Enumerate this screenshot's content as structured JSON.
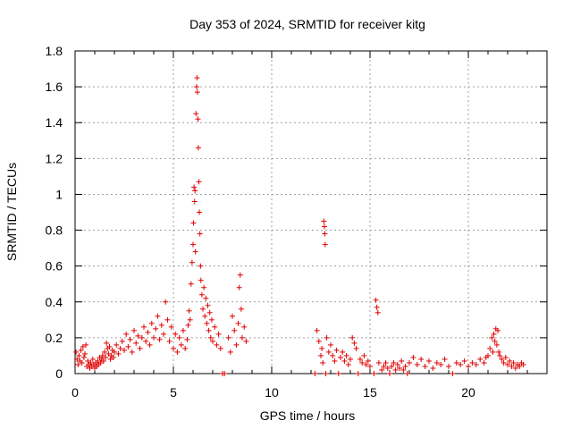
{
  "chart_data": {
    "type": "scatter",
    "title": "Day 353 of 2024, SRMTID for receiver kitg",
    "xlabel": "GPS time / hours",
    "ylabel": "SRMTID / TECUs",
    "xlim": [
      0,
      24
    ],
    "ylim": [
      0,
      1.8
    ],
    "xticks": [
      0,
      5,
      10,
      15,
      20
    ],
    "yticks": [
      0,
      0.2,
      0.4,
      0.6,
      0.8,
      1,
      1.2,
      1.4,
      1.6,
      1.8
    ],
    "xtick_labels": [
      "0",
      "5",
      "10",
      "15",
      "20"
    ],
    "ytick_labels": [
      "0",
      "0.2",
      "0.4",
      "0.6",
      "0.8",
      "1",
      "1.2",
      "1.4",
      "1.6",
      "1.8"
    ],
    "grid": true,
    "marker": "plus",
    "color": "#e00000",
    "series": [
      {
        "name": "SRMTID",
        "points": [
          [
            0.05,
            0.12
          ],
          [
            0.1,
            0.08
          ],
          [
            0.15,
            0.05
          ],
          [
            0.2,
            0.1
          ],
          [
            0.25,
            0.07
          ],
          [
            0.3,
            0.13
          ],
          [
            0.35,
            0.06
          ],
          [
            0.4,
            0.15
          ],
          [
            0.45,
            0.09
          ],
          [
            0.5,
            0.11
          ],
          [
            0.55,
            0.16
          ],
          [
            0.6,
            0.04
          ],
          [
            0.65,
            0.07
          ],
          [
            0.7,
            0.05
          ],
          [
            0.75,
            0.03
          ],
          [
            0.8,
            0.06
          ],
          [
            0.85,
            0.04
          ],
          [
            0.9,
            0.08
          ],
          [
            0.95,
            0.05
          ],
          [
            1.0,
            0.03
          ],
          [
            1.05,
            0.06
          ],
          [
            1.1,
            0.04
          ],
          [
            1.15,
            0.07
          ],
          [
            1.2,
            0.05
          ],
          [
            1.25,
            0.09
          ],
          [
            1.3,
            0.06
          ],
          [
            1.35,
            0.08
          ],
          [
            1.4,
            0.1
          ],
          [
            1.45,
            0.07
          ],
          [
            1.5,
            0.12
          ],
          [
            1.55,
            0.09
          ],
          [
            1.6,
            0.17
          ],
          [
            1.65,
            0.14
          ],
          [
            1.7,
            0.11
          ],
          [
            1.75,
            0.15
          ],
          [
            1.8,
            0.08
          ],
          [
            1.85,
            0.1
          ],
          [
            1.9,
            0.13
          ],
          [
            1.95,
            0.09
          ],
          [
            2.0,
            0.12
          ],
          [
            2.1,
            0.16
          ],
          [
            2.2,
            0.11
          ],
          [
            2.3,
            0.14
          ],
          [
            2.4,
            0.18
          ],
          [
            2.5,
            0.13
          ],
          [
            2.6,
            0.22
          ],
          [
            2.7,
            0.15
          ],
          [
            2.8,
            0.19
          ],
          [
            2.9,
            0.12
          ],
          [
            3.0,
            0.24
          ],
          [
            3.1,
            0.17
          ],
          [
            3.2,
            0.21
          ],
          [
            3.3,
            0.14
          ],
          [
            3.4,
            0.2
          ],
          [
            3.5,
            0.26
          ],
          [
            3.6,
            0.18
          ],
          [
            3.7,
            0.23
          ],
          [
            3.8,
            0.16
          ],
          [
            3.9,
            0.28
          ],
          [
            4.0,
            0.2
          ],
          [
            4.1,
            0.25
          ],
          [
            4.2,
            0.32
          ],
          [
            4.3,
            0.19
          ],
          [
            4.4,
            0.27
          ],
          [
            4.5,
            0.22
          ],
          [
            4.6,
            0.4
          ],
          [
            4.7,
            0.3
          ],
          [
            4.8,
            0.18
          ],
          [
            4.9,
            0.26
          ],
          [
            5.0,
            0.14
          ],
          [
            5.1,
            0.22
          ],
          [
            5.2,
            0.12
          ],
          [
            5.3,
            0.2
          ],
          [
            5.4,
            0.16
          ],
          [
            5.5,
            0.24
          ],
          [
            5.6,
            0.14
          ],
          [
            5.7,
            0.19
          ],
          [
            5.75,
            0.27
          ],
          [
            5.8,
            0.35
          ],
          [
            5.85,
            0.3
          ],
          [
            5.9,
            0.5
          ],
          [
            5.95,
            0.62
          ],
          [
            6.0,
            0.72
          ],
          [
            6.02,
            0.84
          ],
          [
            6.05,
            1.04
          ],
          [
            6.08,
            0.96
          ],
          [
            6.1,
            1.02
          ],
          [
            6.12,
            0.68
          ],
          [
            6.15,
            1.45
          ],
          [
            6.18,
            1.6
          ],
          [
            6.2,
            1.65
          ],
          [
            6.22,
            1.57
          ],
          [
            6.25,
            1.42
          ],
          [
            6.27,
            1.26
          ],
          [
            6.3,
            1.07
          ],
          [
            6.32,
            0.9
          ],
          [
            6.35,
            0.78
          ],
          [
            6.38,
            0.6
          ],
          [
            6.4,
            0.52
          ],
          [
            6.45,
            0.44
          ],
          [
            6.5,
            0.36
          ],
          [
            6.55,
            0.48
          ],
          [
            6.6,
            0.32
          ],
          [
            6.65,
            0.42
          ],
          [
            6.7,
            0.28
          ],
          [
            6.75,
            0.38
          ],
          [
            6.8,
            0.24
          ],
          [
            6.85,
            0.34
          ],
          [
            6.9,
            0.2
          ],
          [
            6.95,
            0.3
          ],
          [
            7.0,
            0.18
          ],
          [
            7.1,
            0.26
          ],
          [
            7.2,
            0.16
          ],
          [
            7.3,
            0.22
          ],
          [
            7.4,
            0.14
          ],
          [
            7.5,
            0.0
          ],
          [
            7.6,
            0.0
          ],
          [
            7.8,
            0.2
          ],
          [
            7.9,
            0.12
          ],
          [
            8.0,
            0.32
          ],
          [
            8.1,
            0.24
          ],
          [
            8.2,
            0.16
          ],
          [
            8.3,
            0.28
          ],
          [
            8.35,
            0.48
          ],
          [
            8.4,
            0.55
          ],
          [
            8.45,
            0.36
          ],
          [
            8.5,
            0.2
          ],
          [
            8.6,
            0.26
          ],
          [
            8.7,
            0.18
          ],
          [
            12.2,
            0.0
          ],
          [
            12.3,
            0.24
          ],
          [
            12.4,
            0.18
          ],
          [
            12.5,
            0.1
          ],
          [
            12.55,
            0.14
          ],
          [
            12.6,
            0.06
          ],
          [
            12.65,
            0.85
          ],
          [
            12.68,
            0.82
          ],
          [
            12.7,
            0.78
          ],
          [
            12.72,
            0.72
          ],
          [
            12.75,
            0.0
          ],
          [
            12.8,
            0.2
          ],
          [
            12.9,
            0.12
          ],
          [
            13.0,
            0.16
          ],
          [
            13.1,
            0.1
          ],
          [
            13.2,
            0.07
          ],
          [
            13.3,
            0.13
          ],
          [
            13.4,
            0.0
          ],
          [
            13.5,
            0.09
          ],
          [
            13.6,
            0.12
          ],
          [
            13.7,
            0.07
          ],
          [
            13.8,
            0.1
          ],
          [
            13.9,
            0.05
          ],
          [
            14.0,
            0.08
          ],
          [
            14.1,
            0.2
          ],
          [
            14.2,
            0.17
          ],
          [
            14.3,
            0.14
          ],
          [
            14.4,
            0.0
          ],
          [
            14.5,
            0.08
          ],
          [
            14.6,
            0.06
          ],
          [
            14.7,
            0.1
          ],
          [
            14.8,
            0.05
          ],
          [
            14.9,
            0.07
          ],
          [
            15.0,
            0.04
          ],
          [
            15.2,
            0.0
          ],
          [
            15.3,
            0.41
          ],
          [
            15.35,
            0.37
          ],
          [
            15.4,
            0.34
          ],
          [
            15.45,
            0.06
          ],
          [
            15.6,
            0.02
          ],
          [
            15.7,
            0.04
          ],
          [
            15.8,
            0.06
          ],
          [
            15.9,
            0.03
          ],
          [
            16.0,
            0.0
          ],
          [
            16.1,
            0.04
          ],
          [
            16.2,
            0.06
          ],
          [
            16.3,
            0.02
          ],
          [
            16.4,
            0.05
          ],
          [
            16.5,
            0.03
          ],
          [
            16.6,
            0.07
          ],
          [
            16.7,
            0.02
          ],
          [
            16.8,
            0.04
          ],
          [
            16.9,
            0.0
          ],
          [
            17.0,
            0.06
          ],
          [
            17.2,
            0.09
          ],
          [
            17.4,
            0.05
          ],
          [
            17.6,
            0.08
          ],
          [
            17.8,
            0.04
          ],
          [
            18.0,
            0.07
          ],
          [
            18.2,
            0.03
          ],
          [
            18.4,
            0.06
          ],
          [
            18.6,
            0.05
          ],
          [
            18.8,
            0.08
          ],
          [
            19.0,
            0.04
          ],
          [
            19.2,
            0.0
          ],
          [
            19.4,
            0.06
          ],
          [
            19.6,
            0.05
          ],
          [
            19.8,
            0.07
          ],
          [
            20.0,
            0.04
          ],
          [
            20.2,
            0.06
          ],
          [
            20.4,
            0.05
          ],
          [
            20.6,
            0.08
          ],
          [
            20.8,
            0.06
          ],
          [
            20.9,
            0.09
          ],
          [
            21.0,
            0.1
          ],
          [
            21.1,
            0.14
          ],
          [
            21.2,
            0.2
          ],
          [
            21.25,
            0.12
          ],
          [
            21.3,
            0.22
          ],
          [
            21.35,
            0.18
          ],
          [
            21.4,
            0.25
          ],
          [
            21.45,
            0.16
          ],
          [
            21.5,
            0.24
          ],
          [
            21.55,
            0.12
          ],
          [
            21.6,
            0.1
          ],
          [
            21.7,
            0.08
          ],
          [
            21.8,
            0.06
          ],
          [
            21.9,
            0.09
          ],
          [
            22.0,
            0.05
          ],
          [
            22.1,
            0.07
          ],
          [
            22.2,
            0.04
          ],
          [
            22.3,
            0.06
          ],
          [
            22.4,
            0.03
          ],
          [
            22.5,
            0.05
          ],
          [
            22.6,
            0.04
          ],
          [
            22.7,
            0.06
          ],
          [
            22.8,
            0.05
          ]
        ]
      }
    ]
  }
}
